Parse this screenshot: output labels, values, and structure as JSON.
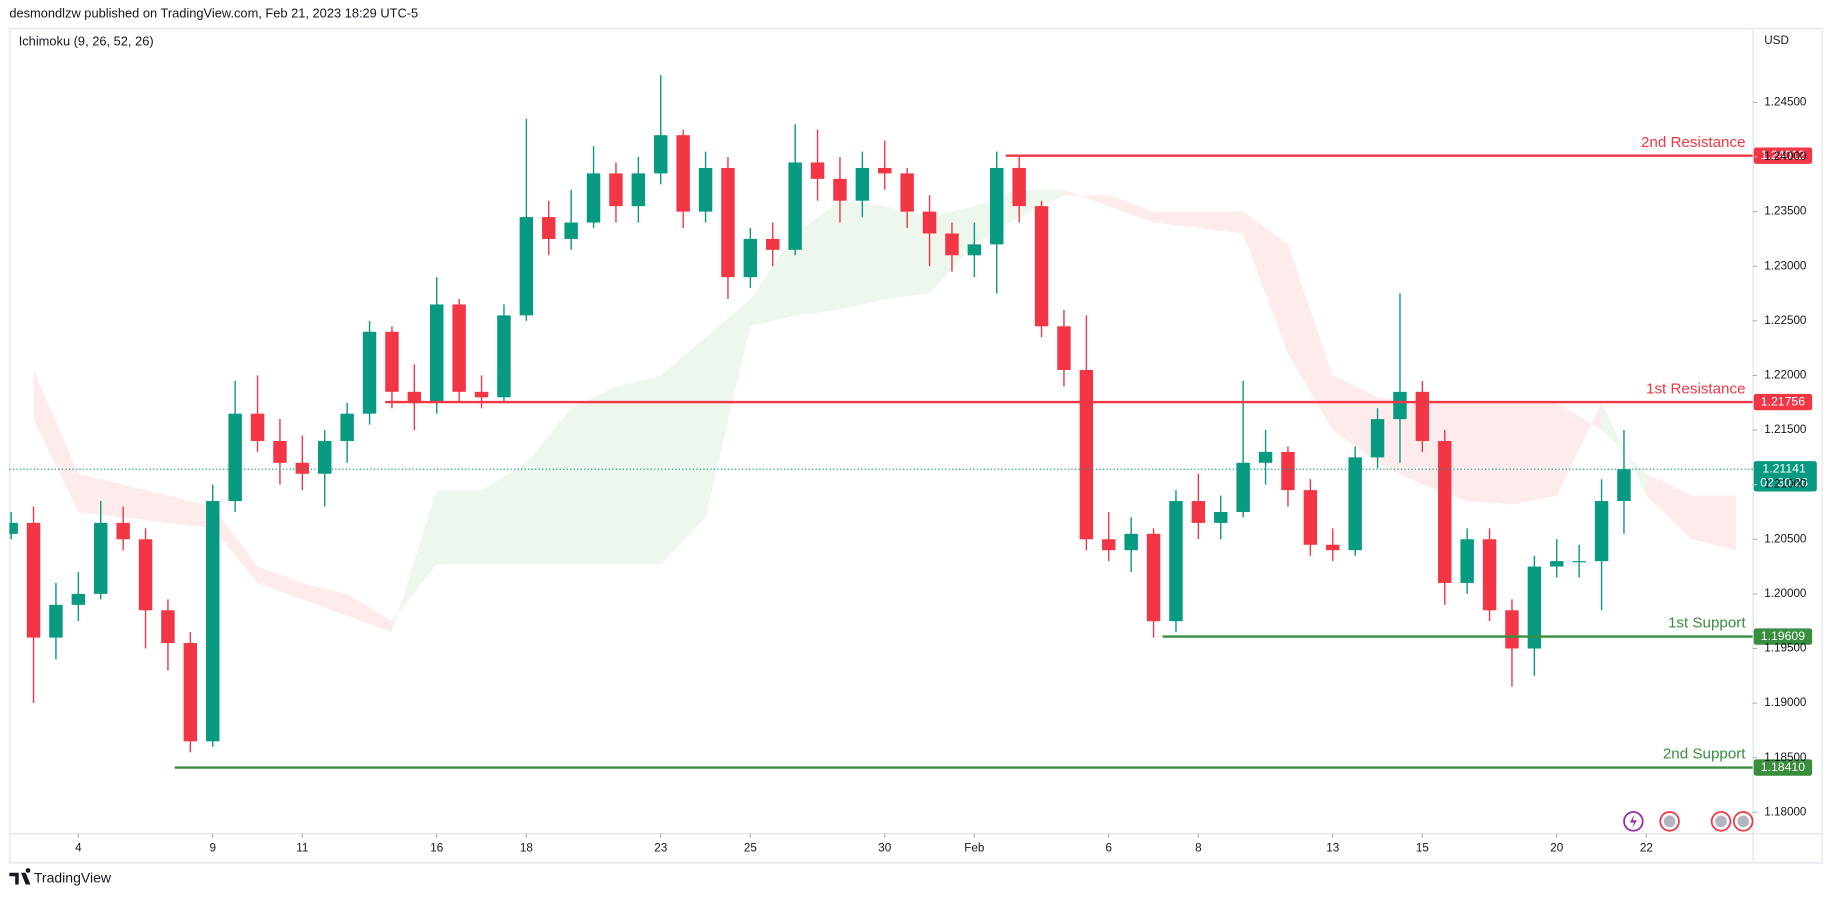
{
  "header": "desmondlzw published on TradingView.com, Feb 21, 2023 18:29 UTC-5",
  "footer": "TradingView",
  "chart_data": {
    "type": "candlestick",
    "indicator": "Ichimoku (9, 26, 52, 26)",
    "currency": "USD",
    "up_color": "#089981",
    "down_color": "#f23645",
    "x": [
      -1.5,
      -1,
      -0.5,
      0,
      0.5,
      1,
      1.5,
      2,
      2.5,
      3,
      3.5,
      4,
      4.5,
      5,
      5.5,
      6,
      6.5,
      7,
      7.5,
      8,
      8.5,
      9,
      9.5,
      10,
      10.5,
      11,
      11.5,
      12,
      12.5,
      13,
      13.5,
      14,
      14.5,
      15,
      15.5,
      16,
      16.5,
      17,
      17.5,
      18,
      18.5,
      19,
      19.5,
      20,
      20.5,
      21,
      21.5,
      22,
      22.5,
      23,
      23.5,
      24,
      24.5,
      25,
      25.5,
      26,
      26.5,
      27,
      27.5,
      28,
      28.5,
      29,
      29.5,
      30,
      30.5,
      31,
      31.5,
      32,
      32.5,
      33,
      33.5,
      34,
      34.5
    ],
    "open": [
      1.2055,
      1.2065,
      1.196,
      1.199,
      1.2,
      1.2065,
      1.205,
      1.1985,
      1.1955,
      1.1865,
      1.2085,
      1.2165,
      1.214,
      1.212,
      1.211,
      1.214,
      1.2165,
      1.224,
      1.2185,
      1.2175,
      1.2265,
      1.2185,
      1.218,
      1.2255,
      1.2345,
      1.2325,
      1.234,
      1.2385,
      1.2355,
      1.2385,
      1.242,
      1.235,
      1.239,
      1.229,
      1.2325,
      1.2315,
      1.2395,
      1.238,
      1.236,
      1.239,
      1.2385,
      1.235,
      1.233,
      1.231,
      1.232,
      1.239,
      1.2355,
      1.2245,
      1.2205,
      1.205,
      1.204,
      1.2055,
      1.1975,
      1.2085,
      1.2065,
      1.2075,
      1.212,
      1.213,
      1.2095,
      1.2045,
      1.204,
      1.2125,
      1.216,
      1.2185,
      1.214,
      1.201,
      1.205,
      1.1985,
      1.195,
      1.2025,
      1.203,
      1.203,
      1.2085
    ],
    "high": [
      1.2075,
      1.208,
      1.201,
      1.202,
      1.2085,
      1.208,
      1.206,
      1.1995,
      1.1965,
      1.21,
      1.2195,
      1.22,
      1.216,
      1.2145,
      1.215,
      1.2175,
      1.225,
      1.2245,
      1.221,
      1.229,
      1.227,
      1.22,
      1.2265,
      1.2435,
      1.236,
      1.237,
      1.241,
      1.2395,
      1.24,
      1.2475,
      1.2425,
      1.2405,
      1.24,
      1.2335,
      1.234,
      1.243,
      1.2425,
      1.24,
      1.2405,
      1.2415,
      1.239,
      1.2365,
      1.234,
      1.234,
      1.2405,
      1.24,
      1.236,
      1.226,
      1.2255,
      1.2075,
      1.207,
      1.206,
      1.2095,
      1.211,
      1.209,
      1.2195,
      1.215,
      1.2135,
      1.2105,
      1.206,
      1.2135,
      1.217,
      1.2275,
      1.2195,
      1.215,
      1.206,
      1.206,
      1.1995,
      1.2035,
      1.205,
      1.2045,
      1.2105,
      1.215
    ],
    "low": [
      1.205,
      1.19,
      1.194,
      1.1975,
      1.1995,
      1.204,
      1.195,
      1.193,
      1.1855,
      1.186,
      1.2075,
      1.213,
      1.21,
      1.2095,
      1.208,
      1.212,
      1.2155,
      1.217,
      1.215,
      1.2165,
      1.2175,
      1.217,
      1.2175,
      1.225,
      1.231,
      1.2315,
      1.2335,
      1.234,
      1.234,
      1.2375,
      1.2335,
      1.234,
      1.227,
      1.228,
      1.23,
      1.231,
      1.236,
      1.234,
      1.2345,
      1.237,
      1.2335,
      1.23,
      1.2295,
      1.229,
      1.2275,
      1.234,
      1.2235,
      1.219,
      1.204,
      1.203,
      1.202,
      1.196,
      1.1965,
      1.205,
      1.205,
      1.207,
      1.21,
      1.208,
      1.2035,
      1.203,
      1.2035,
      1.2115,
      1.212,
      1.213,
      1.199,
      1.2,
      1.1975,
      1.1915,
      1.1925,
      1.2015,
      1.2015,
      1.1985,
      1.2055
    ],
    "close": [
      1.2065,
      1.196,
      1.199,
      1.2,
      1.2065,
      1.205,
      1.1985,
      1.1955,
      1.1865,
      1.2085,
      1.2165,
      1.214,
      1.212,
      1.211,
      1.214,
      1.2165,
      1.224,
      1.2185,
      1.2175,
      1.2265,
      1.2185,
      1.218,
      1.2255,
      1.2345,
      1.2325,
      1.234,
      1.2385,
      1.2355,
      1.2385,
      1.242,
      1.235,
      1.239,
      1.229,
      1.2325,
      1.2315,
      1.2395,
      1.238,
      1.236,
      1.239,
      1.2385,
      1.235,
      1.233,
      1.231,
      1.232,
      1.239,
      1.2355,
      1.2245,
      1.2205,
      1.205,
      1.204,
      1.2055,
      1.1975,
      1.2085,
      1.2065,
      1.2075,
      1.212,
      1.213,
      1.2095,
      1.2045,
      1.204,
      1.2125,
      1.216,
      1.2185,
      1.214,
      1.201,
      1.205,
      1.1985,
      1.195,
      1.2025,
      1.203,
      1.203,
      1.2085,
      1.21141
    ],
    "cloud": {
      "up_color": "#4caf50",
      "down_color": "#f23645",
      "x": [
        -1,
        0,
        1,
        2,
        3,
        4,
        5,
        6,
        7,
        8,
        9,
        10,
        11,
        12,
        13,
        14,
        15,
        16,
        17,
        18,
        19,
        20,
        21,
        22,
        23,
        24,
        25,
        26,
        27,
        28,
        29,
        30,
        31,
        32,
        33,
        34,
        35,
        36,
        37
      ],
      "span_a": [
        1.216,
        1.2075,
        1.207,
        1.2065,
        1.206,
        1.201,
        1.1995,
        1.198,
        1.1965,
        1.2095,
        1.2095,
        1.212,
        1.217,
        1.219,
        1.22,
        1.2235,
        1.227,
        1.233,
        1.236,
        1.2355,
        1.2345,
        1.2355,
        1.237,
        1.237,
        1.2355,
        1.234,
        1.2335,
        1.233,
        1.222,
        1.215,
        1.212,
        1.21,
        1.2085,
        1.2082,
        1.209,
        1.2175,
        1.209,
        1.205,
        1.204
      ],
      "span_b": [
        1.2205,
        1.211,
        1.21,
        1.209,
        1.208,
        1.2025,
        1.201,
        1.2,
        1.1975,
        1.2027,
        1.2027,
        1.2027,
        1.2027,
        1.2027,
        1.2027,
        1.207,
        1.2245,
        1.2255,
        1.226,
        1.227,
        1.2275,
        1.232,
        1.2345,
        1.2365,
        1.2365,
        1.235,
        1.235,
        1.235,
        1.232,
        1.22,
        1.218,
        1.2175,
        1.2175,
        1.2175,
        1.2175,
        1.215,
        1.211,
        1.209,
        1.209
      ]
    },
    "levels": [
      {
        "name": "2nd Resistance",
        "value": 1.24012,
        "label": "1.24012",
        "start": 20.7,
        "color": "#f23645"
      },
      {
        "name": "1st Resistance",
        "value": 1.21756,
        "label": "1.21756",
        "start": 6.85,
        "color": "#f23645"
      },
      {
        "name": "1st Support",
        "value": 1.19609,
        "label": "1.19609",
        "start": 24.2,
        "color": "#388e3c"
      },
      {
        "name": "2nd Support",
        "value": 1.1841,
        "label": "1.18410",
        "start": 2.15,
        "color": "#388e3c"
      }
    ],
    "price_color": "#089981",
    "countdown": "02:30:26",
    "xlim": [
      -1.54,
      37.37
    ],
    "xticks": [
      {
        "value": 0,
        "label": "4"
      },
      {
        "value": 3,
        "label": "9"
      },
      {
        "value": 5,
        "label": "11"
      },
      {
        "value": 8,
        "label": "16"
      },
      {
        "value": 10,
        "label": "18"
      },
      {
        "value": 13,
        "label": "23"
      },
      {
        "value": 15,
        "label": "25"
      },
      {
        "value": 18,
        "label": "30"
      },
      {
        "value": 20,
        "label": "Feb"
      },
      {
        "value": 23,
        "label": "6"
      },
      {
        "value": 25,
        "label": "8"
      },
      {
        "value": 28,
        "label": "13"
      },
      {
        "value": 30,
        "label": "15"
      },
      {
        "value": 33,
        "label": "20"
      },
      {
        "value": 35,
        "label": "22"
      }
    ],
    "ylim": [
      1.1781,
      1.2517
    ],
    "yticks": [
      {
        "value": 1.18,
        "label": "1.18000"
      },
      {
        "value": 1.185,
        "label": "1.18500"
      },
      {
        "value": 1.19,
        "label": "1.19000"
      },
      {
        "value": 1.195,
        "label": "1.19500"
      },
      {
        "value": 1.2,
        "label": "1.20000"
      },
      {
        "value": 1.205,
        "label": "1.20500"
      },
      {
        "value": 1.21,
        "label": "1.21000"
      },
      {
        "value": 1.215,
        "label": "1.21500"
      },
      {
        "value": 1.22,
        "label": "1.22000"
      },
      {
        "value": 1.225,
        "label": "1.22500"
      },
      {
        "value": 1.23,
        "label": "1.23000"
      },
      {
        "value": 1.235,
        "label": "1.23500"
      },
      {
        "value": 1.24,
        "label": "1.24000"
      },
      {
        "value": 1.245,
        "label": "1.24500"
      }
    ],
    "grid": false
  }
}
